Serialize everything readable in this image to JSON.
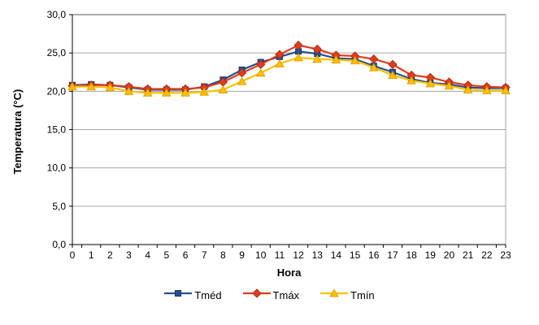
{
  "chart_data": {
    "type": "line",
    "title": "",
    "xlabel": "Hora",
    "ylabel": "Temperatura (°C)",
    "categories": [
      "0",
      "1",
      "2",
      "3",
      "4",
      "5",
      "6",
      "7",
      "8",
      "9",
      "10",
      "11",
      "12",
      "13",
      "14",
      "15",
      "16",
      "17",
      "18",
      "19",
      "20",
      "21",
      "22",
      "23"
    ],
    "ylim": [
      0,
      30
    ],
    "ytick_values": [
      0,
      5,
      10,
      15,
      20,
      25,
      30
    ],
    "ytick_labels": [
      "0,0",
      "5,0",
      "10,0",
      "15,0",
      "20,0",
      "25,0",
      "30,0"
    ],
    "grid": "horizontal",
    "legend_position": "bottom",
    "series": [
      {
        "name": "Tméd",
        "marker": "square",
        "color": "#26508E",
        "edge_color": "#1A3A6B",
        "values": [
          20.8,
          20.9,
          20.8,
          20.5,
          20.2,
          20.2,
          20.2,
          20.6,
          21.5,
          22.8,
          23.8,
          24.5,
          25.2,
          24.9,
          24.3,
          24.2,
          23.3,
          22.5,
          21.6,
          21.1,
          20.9,
          20.5,
          20.4,
          20.4
        ]
      },
      {
        "name": "Tmáx",
        "marker": "diamond",
        "color": "#E03C1E",
        "edge_color": "#B52E12",
        "values": [
          20.7,
          20.8,
          20.8,
          20.6,
          20.3,
          20.3,
          20.3,
          20.5,
          21.2,
          22.4,
          23.5,
          24.8,
          26.0,
          25.5,
          24.7,
          24.6,
          24.2,
          23.5,
          22.1,
          21.8,
          21.2,
          20.8,
          20.6,
          20.5
        ]
      },
      {
        "name": "Tmín",
        "marker": "triangle",
        "color": "#FFC000",
        "edge_color": "#E0A000",
        "values": [
          20.6,
          20.6,
          20.5,
          20.0,
          19.8,
          19.8,
          19.8,
          19.9,
          20.2,
          21.3,
          22.4,
          23.6,
          24.4,
          24.2,
          24.1,
          24.0,
          23.1,
          22.1,
          21.4,
          21.0,
          20.7,
          20.2,
          20.1,
          20.1
        ]
      }
    ],
    "style": {
      "gridline_color": "#A6A6A6",
      "plot_border_top_color": "#595959",
      "plot_border_right_color": "#A6A6A6",
      "axis_color": "#000000",
      "background": "#FFFFFF"
    }
  }
}
